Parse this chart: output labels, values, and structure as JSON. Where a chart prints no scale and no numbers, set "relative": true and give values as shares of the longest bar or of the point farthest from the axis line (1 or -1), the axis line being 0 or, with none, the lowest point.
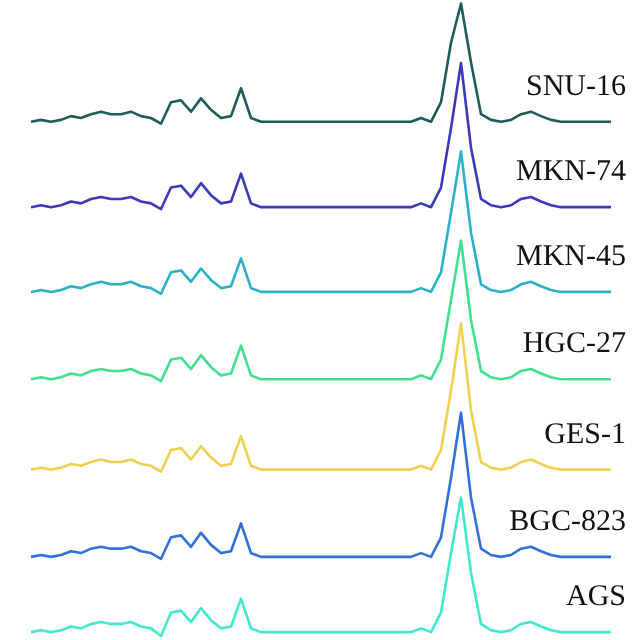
{
  "chart_data": {
    "type": "line",
    "relative": true,
    "categories": [
      null,
      null,
      null,
      null,
      null,
      null,
      null,
      null,
      null,
      null,
      null,
      null,
      null,
      null,
      null,
      null,
      null,
      null,
      null,
      null,
      null,
      null,
      null,
      null,
      null,
      null,
      null,
      null,
      null,
      null,
      null,
      null,
      null,
      null,
      null,
      null,
      null,
      null,
      null,
      null,
      null,
      null,
      null,
      null,
      null,
      null,
      null,
      null,
      null,
      null,
      null,
      null,
      null,
      null,
      null,
      null,
      null,
      null,
      null
    ],
    "series": [
      {
        "name": "SNU-16",
        "color": "#1e5b5b",
        "values": [
          0.813,
          0.816,
          0.813,
          0.816,
          0.822,
          0.819,
          0.825,
          0.829,
          0.825,
          0.825,
          0.829,
          0.822,
          0.819,
          0.81,
          0.844,
          0.847,
          0.829,
          0.85,
          0.832,
          0.819,
          0.822,
          0.866,
          0.819,
          0.813,
          0.813,
          0.813,
          0.813,
          0.813,
          0.813,
          0.813,
          0.813,
          0.813,
          0.813,
          0.813,
          0.813,
          0.813,
          0.813,
          0.813,
          0.813,
          0.819,
          0.813,
          0.844,
          0.938,
          1.0,
          0.907,
          0.825,
          0.816,
          0.813,
          0.816,
          0.825,
          0.829,
          0.822,
          0.816,
          0.813,
          0.813,
          0.813,
          0.813,
          0.813,
          0.813
        ]
      },
      {
        "name": "MKN-74",
        "color": "#3a3ab8",
        "values": [
          0.678,
          0.681,
          0.678,
          0.681,
          0.687,
          0.684,
          0.691,
          0.694,
          0.691,
          0.691,
          0.694,
          0.687,
          0.684,
          0.675,
          0.709,
          0.712,
          0.694,
          0.716,
          0.697,
          0.684,
          0.687,
          0.731,
          0.684,
          0.678,
          0.678,
          0.678,
          0.678,
          0.678,
          0.678,
          0.678,
          0.678,
          0.678,
          0.678,
          0.678,
          0.678,
          0.678,
          0.678,
          0.678,
          0.678,
          0.684,
          0.678,
          0.709,
          0.803,
          0.906,
          0.772,
          0.691,
          0.681,
          0.678,
          0.681,
          0.691,
          0.694,
          0.687,
          0.681,
          0.678,
          0.678,
          0.678,
          0.678,
          0.678,
          0.678
        ]
      },
      {
        "name": "MKN-45",
        "color": "#2ab0c8",
        "values": [
          0.544,
          0.547,
          0.544,
          0.547,
          0.553,
          0.55,
          0.556,
          0.56,
          0.556,
          0.556,
          0.56,
          0.553,
          0.55,
          0.541,
          0.575,
          0.578,
          0.56,
          0.581,
          0.563,
          0.55,
          0.553,
          0.597,
          0.55,
          0.544,
          0.544,
          0.544,
          0.544,
          0.544,
          0.544,
          0.544,
          0.544,
          0.544,
          0.544,
          0.544,
          0.544,
          0.544,
          0.544,
          0.544,
          0.544,
          0.55,
          0.544,
          0.575,
          0.669,
          0.766,
          0.638,
          0.556,
          0.547,
          0.544,
          0.547,
          0.556,
          0.56,
          0.553,
          0.547,
          0.544,
          0.544,
          0.544,
          0.544,
          0.544,
          0.544
        ]
      },
      {
        "name": "HGC-27",
        "color": "#40e090",
        "values": [
          0.406,
          0.409,
          0.406,
          0.409,
          0.415,
          0.412,
          0.419,
          0.422,
          0.419,
          0.419,
          0.422,
          0.415,
          0.412,
          0.403,
          0.437,
          0.44,
          0.422,
          0.444,
          0.425,
          0.412,
          0.415,
          0.459,
          0.412,
          0.406,
          0.406,
          0.406,
          0.406,
          0.406,
          0.406,
          0.406,
          0.406,
          0.406,
          0.406,
          0.406,
          0.406,
          0.406,
          0.406,
          0.406,
          0.406,
          0.412,
          0.406,
          0.437,
          0.531,
          0.625,
          0.5,
          0.419,
          0.409,
          0.406,
          0.409,
          0.419,
          0.422,
          0.415,
          0.409,
          0.406,
          0.406,
          0.406,
          0.406,
          0.406,
          0.406
        ]
      },
      {
        "name": "GES-1",
        "color": "#f0d050",
        "values": [
          0.263,
          0.266,
          0.263,
          0.266,
          0.272,
          0.269,
          0.275,
          0.279,
          0.275,
          0.275,
          0.279,
          0.272,
          0.269,
          0.26,
          0.294,
          0.297,
          0.279,
          0.3,
          0.282,
          0.269,
          0.272,
          0.316,
          0.269,
          0.263,
          0.263,
          0.263,
          0.263,
          0.263,
          0.263,
          0.263,
          0.263,
          0.263,
          0.263,
          0.263,
          0.263,
          0.263,
          0.263,
          0.263,
          0.263,
          0.269,
          0.263,
          0.294,
          0.388,
          0.494,
          0.357,
          0.275,
          0.266,
          0.263,
          0.266,
          0.275,
          0.279,
          0.272,
          0.266,
          0.263,
          0.263,
          0.263,
          0.263,
          0.263,
          0.263
        ]
      },
      {
        "name": "BGC-823",
        "color": "#3070d8",
        "values": [
          0.125,
          0.128,
          0.125,
          0.128,
          0.134,
          0.131,
          0.138,
          0.141,
          0.138,
          0.138,
          0.141,
          0.134,
          0.131,
          0.122,
          0.156,
          0.159,
          0.141,
          0.163,
          0.144,
          0.131,
          0.134,
          0.178,
          0.131,
          0.125,
          0.125,
          0.125,
          0.125,
          0.125,
          0.125,
          0.125,
          0.125,
          0.125,
          0.125,
          0.125,
          0.125,
          0.125,
          0.125,
          0.125,
          0.125,
          0.131,
          0.125,
          0.156,
          0.25,
          0.353,
          0.219,
          0.138,
          0.128,
          0.125,
          0.128,
          0.138,
          0.141,
          0.134,
          0.128,
          0.125,
          0.125,
          0.125,
          0.125,
          0.125,
          0.125
        ]
      },
      {
        "name": "AGS",
        "color": "#40e8d0",
        "values": [
          0.006,
          0.009,
          0.006,
          0.009,
          0.015,
          0.012,
          0.019,
          0.022,
          0.019,
          0.019,
          0.022,
          0.015,
          0.012,
          0.0,
          0.037,
          0.04,
          0.022,
          0.044,
          0.025,
          0.012,
          0.015,
          0.059,
          0.012,
          0.006,
          0.006,
          0.006,
          0.006,
          0.006,
          0.006,
          0.006,
          0.006,
          0.006,
          0.006,
          0.006,
          0.006,
          0.006,
          0.006,
          0.006,
          0.006,
          0.012,
          0.006,
          0.037,
          0.131,
          0.219,
          0.1,
          0.019,
          0.009,
          0.006,
          0.009,
          0.019,
          0.022,
          0.015,
          0.009,
          0.006,
          0.006,
          0.006,
          0.006,
          0.006,
          0.006
        ]
      }
    ]
  }
}
